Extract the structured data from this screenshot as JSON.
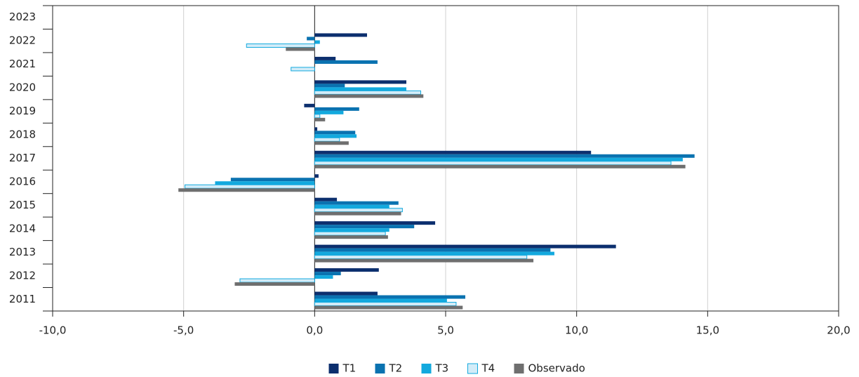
{
  "chart_data": {
    "type": "hbar",
    "categories": [
      "2011",
      "2012",
      "2013",
      "2014",
      "2015",
      "2016",
      "2017",
      "2018",
      "2019",
      "2020",
      "2021",
      "2022",
      "2023"
    ],
    "series": [
      {
        "name": "T1",
        "color": "#0c2f6e",
        "values": [
          2.4,
          2.45,
          11.5,
          4.6,
          0.85,
          0.15,
          10.55,
          0.1,
          -0.4,
          3.5,
          0.8,
          2.0,
          null
        ]
      },
      {
        "name": "T2",
        "color": "#0a72b0",
        "values": [
          5.75,
          1.0,
          9.0,
          3.8,
          3.2,
          -3.2,
          14.5,
          1.55,
          1.7,
          1.15,
          2.4,
          -0.3,
          null
        ]
      },
      {
        "name": "T3",
        "color": "#13a9de",
        "values": [
          5.05,
          0.7,
          9.15,
          2.85,
          2.85,
          -3.8,
          14.05,
          1.6,
          1.1,
          3.5,
          null,
          0.2,
          null
        ]
      },
      {
        "name": "T4",
        "color": "#d3ecf8",
        "values": [
          5.4,
          -2.85,
          8.1,
          2.7,
          3.35,
          -4.95,
          13.6,
          0.95,
          0.2,
          4.05,
          -0.9,
          -2.6,
          null
        ]
      },
      {
        "name": "Observado",
        "color": "#6f6f6f",
        "values": [
          5.65,
          -3.05,
          8.35,
          2.8,
          3.3,
          -5.2,
          14.15,
          1.3,
          0.4,
          4.15,
          null,
          -1.1,
          null
        ]
      }
    ],
    "xlim": [
      -10,
      20
    ],
    "xticks": [
      {
        "value": -10,
        "label": "-10,0"
      },
      {
        "value": -5,
        "label": "-5,0"
      },
      {
        "value": 0,
        "label": "0,0"
      },
      {
        "value": 5,
        "label": "5,0"
      },
      {
        "value": 10,
        "label": "10,0"
      },
      {
        "value": 15,
        "label": "15,0"
      },
      {
        "value": 20,
        "label": "20,0"
      }
    ],
    "grid": true,
    "legend": "bottom"
  }
}
